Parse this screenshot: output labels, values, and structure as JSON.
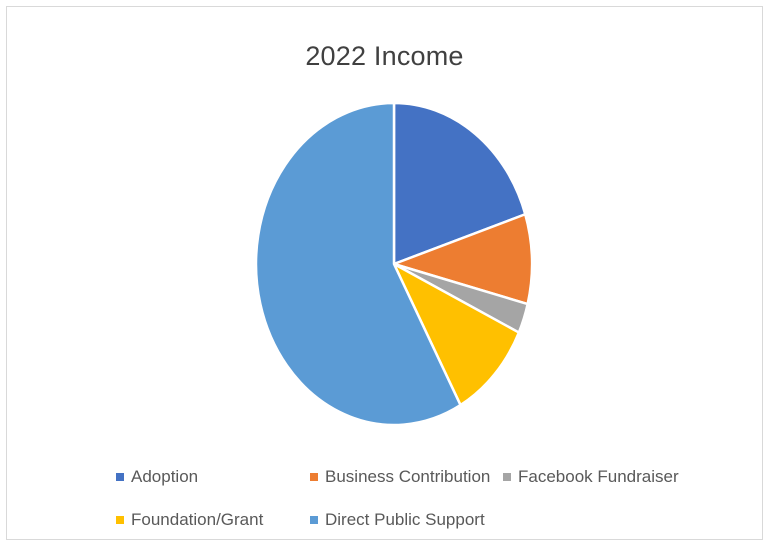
{
  "chart_data": {
    "type": "pie",
    "title": "2022 Income",
    "categories": [
      "Adoption",
      "Business Contribution",
      "Facebook Fundraiser",
      "Foundation/Grant",
      "Direct Public Support"
    ],
    "values": [
      20,
      9,
      3,
      10,
      58
    ],
    "colors": [
      "#4472c4",
      "#ed7d31",
      "#a5a5a5",
      "#ffc000",
      "#5b9bd5"
    ],
    "legend_position": "bottom",
    "start_angle_deg": 0,
    "direction": "clockwise"
  }
}
